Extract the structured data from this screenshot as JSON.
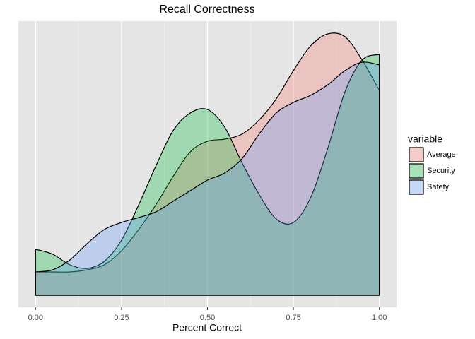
{
  "chart_data": {
    "type": "density",
    "title": "Recall Correctness",
    "x_label": "Percent Correct",
    "x": [
      0,
      0.05,
      0.1,
      0.15,
      0.2,
      0.25,
      0.3,
      0.35,
      0.4,
      0.45,
      0.5,
      0.55,
      0.6,
      0.65,
      0.7,
      0.75,
      0.8,
      0.85,
      0.9,
      0.95,
      1
    ],
    "series": [
      {
        "name": "Average",
        "color": "#F8766D",
        "values": [
          0.33,
          0.33,
          0.33,
          0.36,
          0.43,
          0.63,
          0.93,
          1.28,
          1.68,
          2.03,
          2.18,
          2.21,
          2.28,
          2.48,
          2.78,
          3.18,
          3.53,
          3.7,
          3.66,
          3.33,
          2.9
        ]
      },
      {
        "name": "Security",
        "color": "#00BA38",
        "values": [
          0.65,
          0.58,
          0.43,
          0.38,
          0.48,
          0.78,
          1.28,
          1.83,
          2.33,
          2.58,
          2.63,
          2.38,
          1.88,
          1.43,
          1.08,
          1.03,
          1.38,
          2.08,
          2.88,
          3.33,
          3.41
        ]
      },
      {
        "name": "Safety",
        "color": "#619CFF",
        "values": [
          0.33,
          0.36,
          0.5,
          0.73,
          0.93,
          1.03,
          1.1,
          1.18,
          1.33,
          1.48,
          1.63,
          1.73,
          1.93,
          2.28,
          2.58,
          2.73,
          2.83,
          2.98,
          3.18,
          3.3,
          3.26
        ]
      }
    ],
    "xlim": [
      -0.05,
      1.05
    ],
    "ylim": [
      -0.17,
      3.88
    ],
    "xticks": [
      {
        "value": 0,
        "label": "0.00"
      },
      {
        "value": 0.25,
        "label": "0.25"
      },
      {
        "value": 0.5,
        "label": "0.50"
      },
      {
        "value": 0.75,
        "label": "0.75"
      },
      {
        "value": 1,
        "label": "1.00"
      }
    ],
    "xminor": [
      0.125,
      0.375,
      0.625,
      0.875
    ],
    "grid": true,
    "fill_opacity": 0.3,
    "legend_title": "variable",
    "legend_position": "right"
  }
}
